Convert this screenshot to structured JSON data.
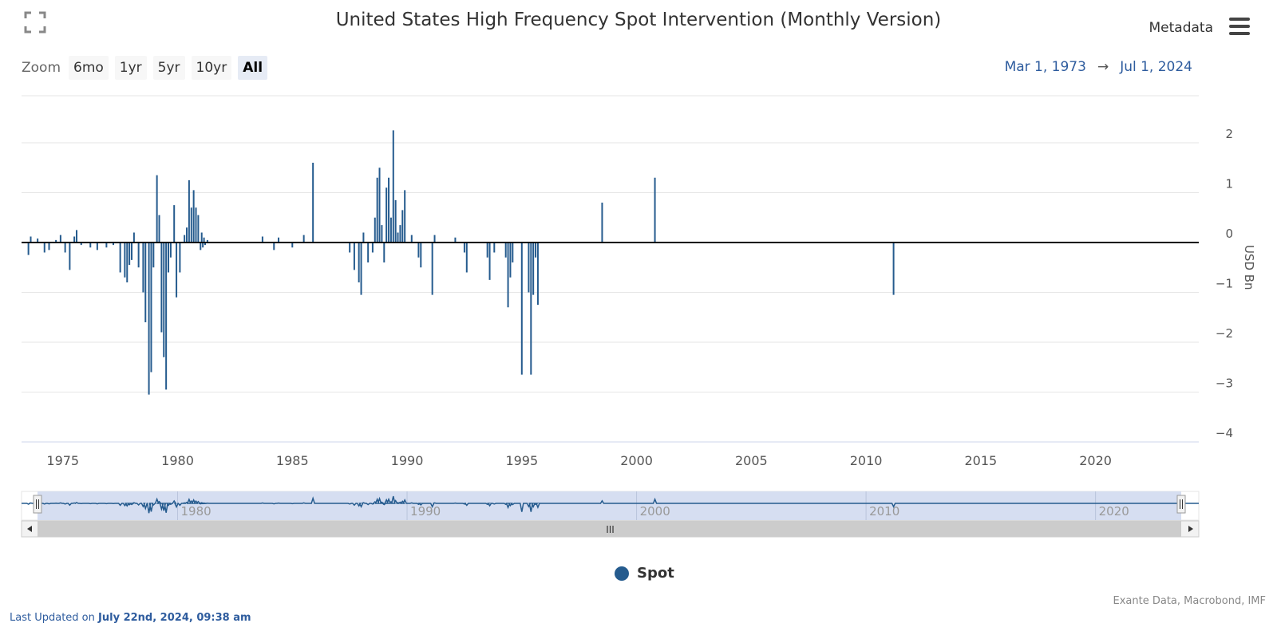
{
  "header": {
    "title": "United States High Frequency Spot Intervention (Monthly Version)",
    "metadata_label": "Metadata"
  },
  "zoom": {
    "label": "Zoom",
    "buttons": [
      "6mo",
      "1yr",
      "5yr",
      "10yr",
      "All"
    ],
    "active": "All"
  },
  "range": {
    "from": "Mar 1, 1973",
    "arrow": "→",
    "to": "Jul 1, 2024"
  },
  "navigator": {
    "tick_labels": [
      "1980",
      "1990",
      "2000",
      "2010",
      "2020"
    ],
    "scroll_grip": "III"
  },
  "legend": {
    "label": "Spot"
  },
  "footer": {
    "source": "Exante Data, Macrobond, IMF",
    "updated_prefix": "Last Updated on",
    "updated_value": "July 22nd, 2024, 09:38 am"
  },
  "colors": {
    "series": "#255b8e",
    "navigator_fill": "#d1daf0",
    "range_text": "#2e5c9e"
  },
  "chart_data": {
    "type": "bar",
    "title": "United States High Frequency Spot Intervention (Monthly Version)",
    "ylabel": "USD Bn",
    "xlabel": "",
    "ylim": [
      -4,
      2.5
    ],
    "xlim": [
      1973.2,
      2024.5
    ],
    "x_ticks": [
      "1975",
      "1980",
      "1985",
      "1990",
      "1995",
      "2000",
      "2005",
      "2010",
      "2015",
      "2020"
    ],
    "y_ticks": [
      "2",
      "1",
      "0",
      "−1",
      "−2",
      "−3",
      "−4"
    ],
    "grid": true,
    "legend_position": "bottom-center",
    "series": [
      {
        "name": "Spot",
        "x": [
          1973.5,
          1973.6,
          1973.9,
          1974.2,
          1974.4,
          1974.7,
          1974.9,
          1975.1,
          1975.3,
          1975.5,
          1975.6,
          1975.8,
          1976.2,
          1976.5,
          1976.9,
          1977.2,
          1977.5,
          1977.7,
          1977.8,
          1977.9,
          1978.0,
          1978.1,
          1978.3,
          1978.5,
          1978.6,
          1978.75,
          1978.85,
          1978.95,
          1979.1,
          1979.2,
          1979.3,
          1979.4,
          1979.5,
          1979.6,
          1979.7,
          1979.85,
          1979.95,
          1980.1,
          1980.3,
          1980.4,
          1980.5,
          1980.6,
          1980.7,
          1980.8,
          1980.9,
          1981.0,
          1981.05,
          1981.1,
          1981.15,
          1981.2,
          1981.3,
          1983.7,
          1984.2,
          1984.4,
          1985.0,
          1985.5,
          1985.9,
          1987.5,
          1987.7,
          1987.9,
          1988.0,
          1988.1,
          1988.3,
          1988.5,
          1988.6,
          1988.7,
          1988.8,
          1988.9,
          1989.0,
          1989.1,
          1989.2,
          1989.3,
          1989.4,
          1989.5,
          1989.6,
          1989.7,
          1989.8,
          1989.9,
          1990.2,
          1990.5,
          1990.6,
          1991.1,
          1991.2,
          1992.1,
          1992.5,
          1992.6,
          1993.5,
          1993.6,
          1993.8,
          1994.3,
          1994.4,
          1994.5,
          1994.6,
          1995.0,
          1995.3,
          1995.4,
          1995.5,
          1995.6,
          1995.7,
          1998.5,
          2000.8,
          2011.2
        ],
        "values": [
          -0.25,
          0.12,
          0.08,
          -0.2,
          -0.15,
          0.05,
          0.15,
          -0.2,
          -0.55,
          0.12,
          0.25,
          -0.05,
          -0.1,
          -0.15,
          -0.1,
          -0.05,
          -0.6,
          -0.7,
          -0.8,
          -0.45,
          -0.35,
          0.2,
          -0.5,
          -1.0,
          -1.6,
          -3.05,
          -2.6,
          -0.5,
          1.35,
          0.55,
          -1.8,
          -2.3,
          -2.95,
          -0.6,
          -0.3,
          0.75,
          -1.1,
          -0.6,
          0.15,
          0.3,
          1.25,
          0.7,
          1.05,
          0.7,
          0.55,
          -0.15,
          0.2,
          -0.1,
          0.1,
          -0.05,
          0.05,
          0.12,
          -0.15,
          0.1,
          -0.1,
          0.15,
          1.6,
          -0.2,
          -0.55,
          -0.8,
          -1.05,
          0.2,
          -0.4,
          -0.2,
          0.5,
          1.3,
          1.5,
          0.35,
          -0.4,
          1.1,
          1.3,
          0.5,
          2.25,
          0.85,
          0.2,
          0.35,
          0.65,
          1.05,
          0.15,
          -0.3,
          -0.5,
          -1.05,
          0.15,
          0.1,
          -0.2,
          -0.6,
          -0.3,
          -0.75,
          -0.2,
          -0.3,
          -1.3,
          -0.7,
          -0.4,
          -2.65,
          -1.0,
          -2.65,
          -1.05,
          -0.3,
          -1.25,
          0.8,
          1.3,
          -1.05
        ]
      }
    ]
  }
}
